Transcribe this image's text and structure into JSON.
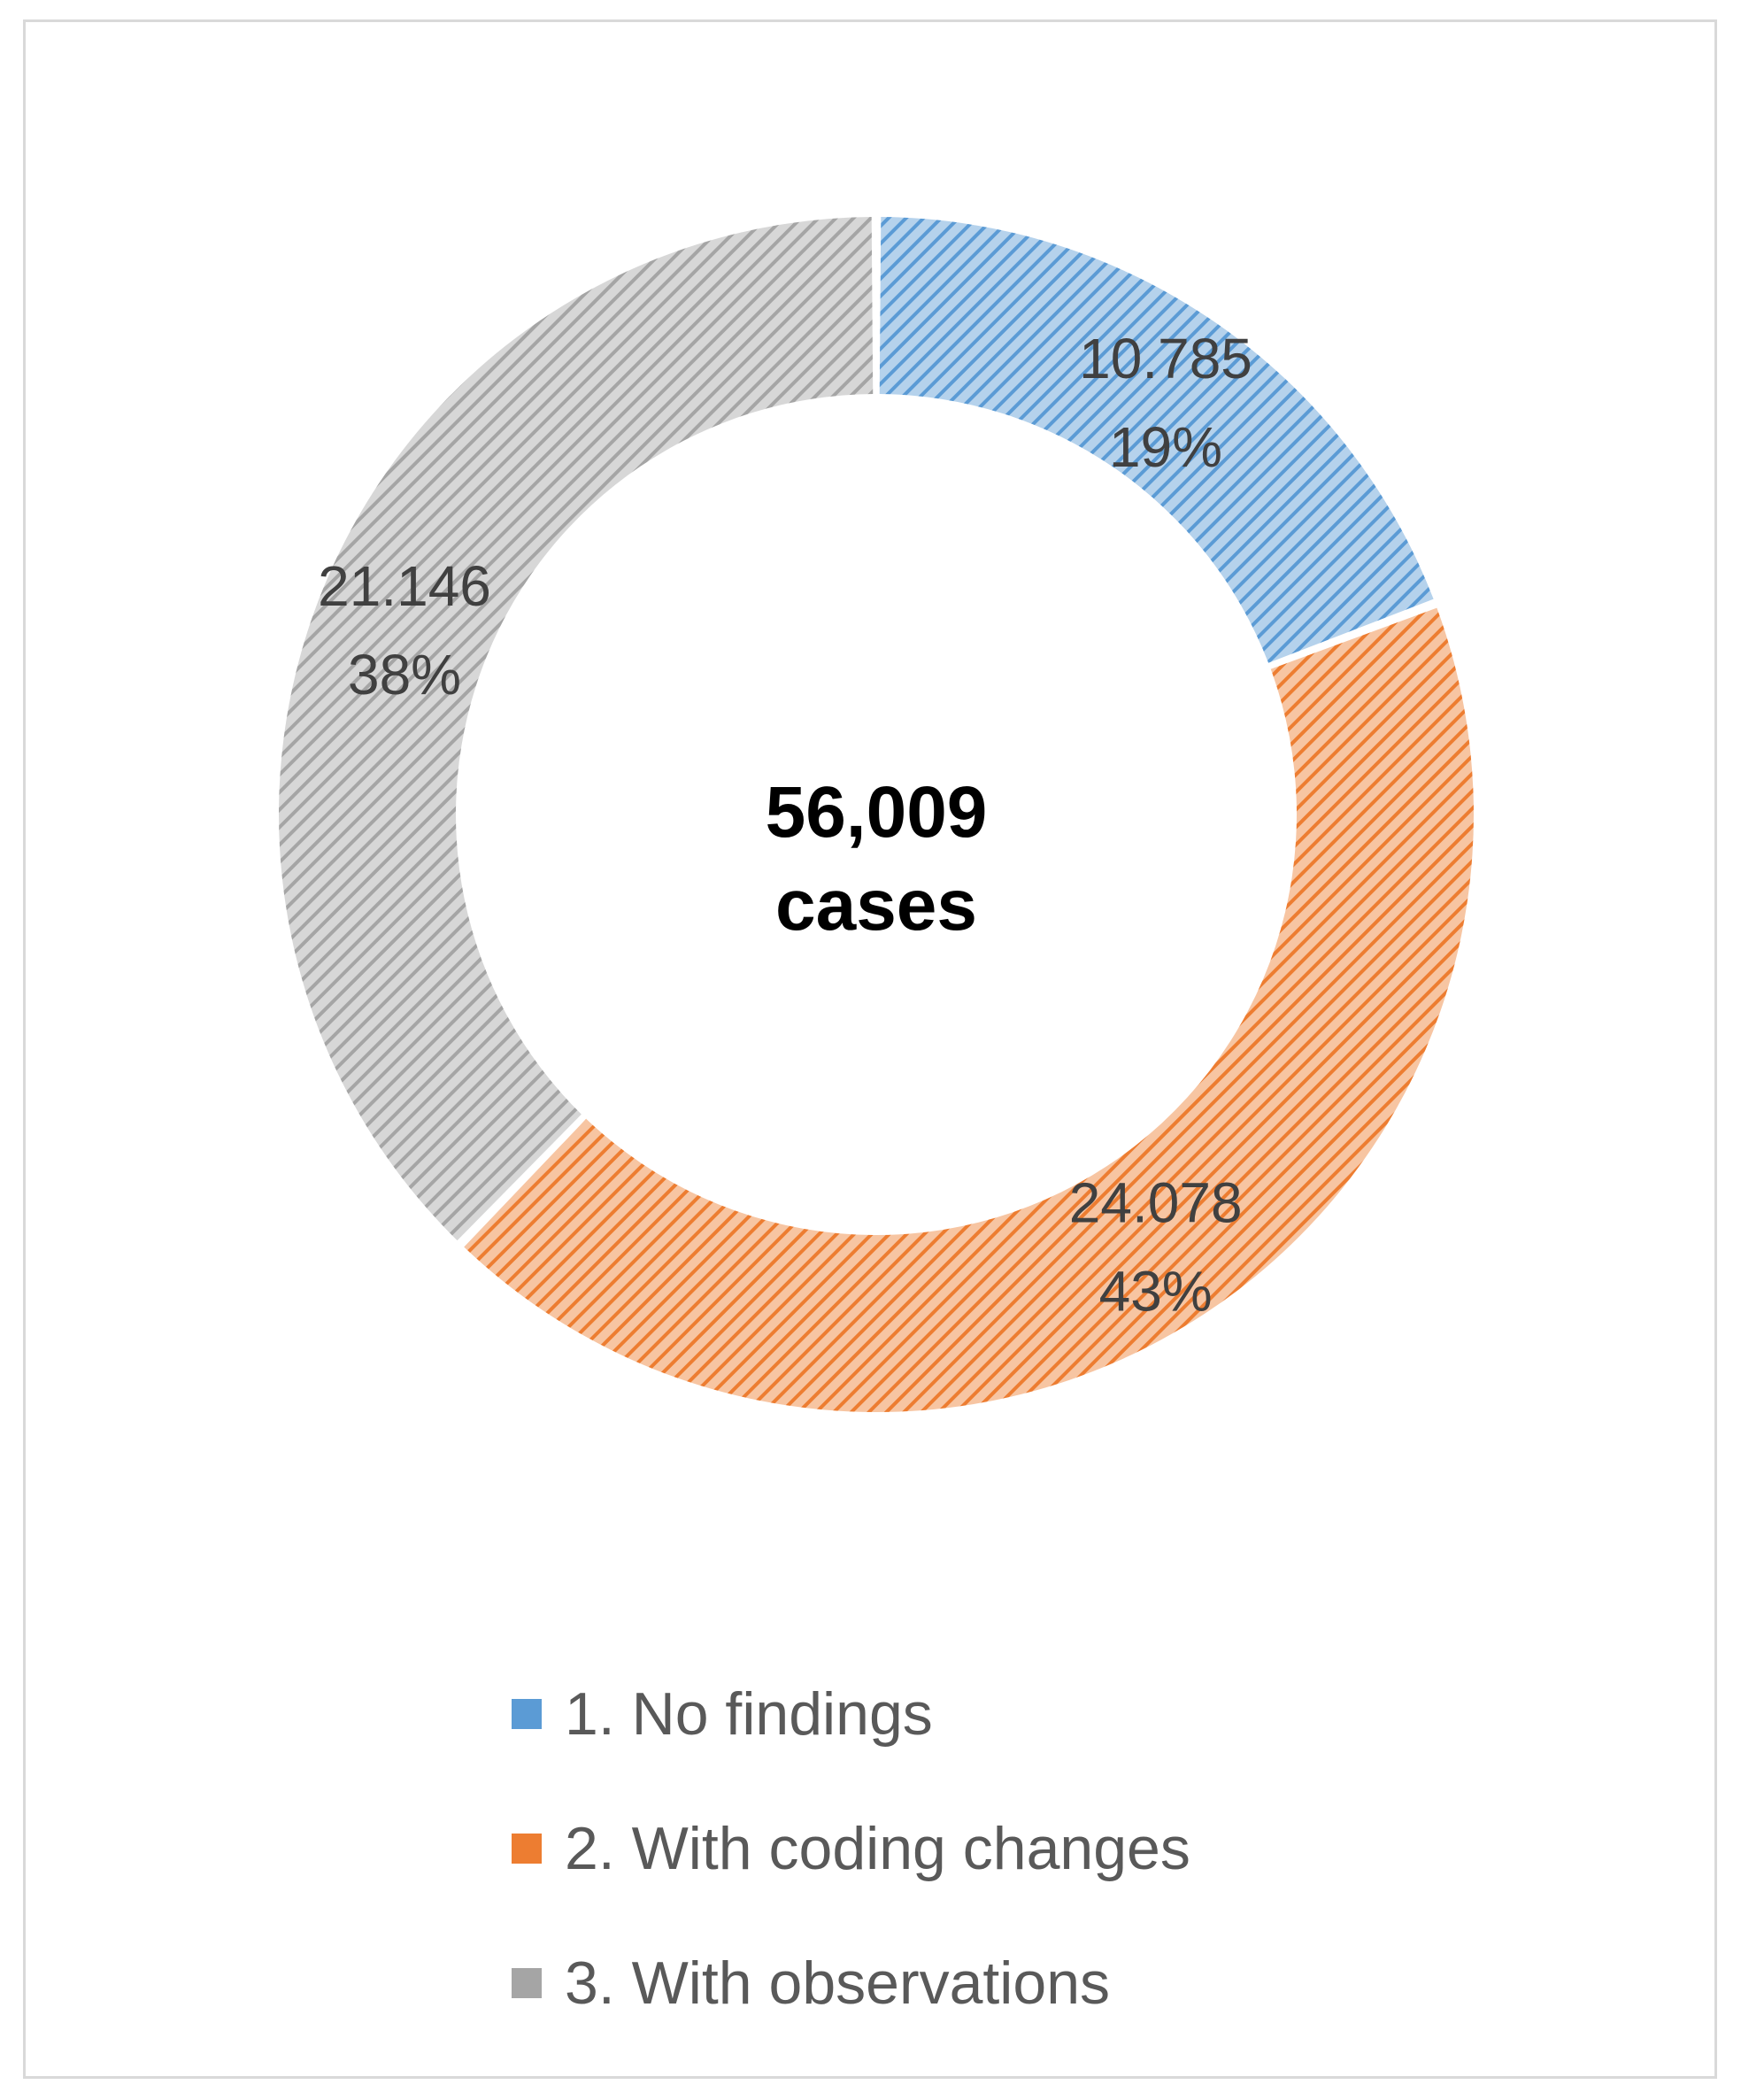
{
  "chart_data": {
    "type": "donut",
    "center_label": {
      "line1": "56,009",
      "line2": "cases"
    },
    "slices": [
      {
        "name": "1. No findings",
        "value": 10785,
        "value_label": "10.785",
        "percent_label": "19%",
        "color": "#5b9bd5"
      },
      {
        "name": "2. With coding changes",
        "value": 24078,
        "value_label": "24.078",
        "percent_label": "43%",
        "color": "#ed7d31"
      },
      {
        "name": "3. With observations",
        "value": 21146,
        "value_label": "21.146",
        "percent_label": "38%",
        "color": "#a5a5a5"
      }
    ],
    "fill_pattern": "diagonal-hatch",
    "legend_position": "bottom"
  }
}
